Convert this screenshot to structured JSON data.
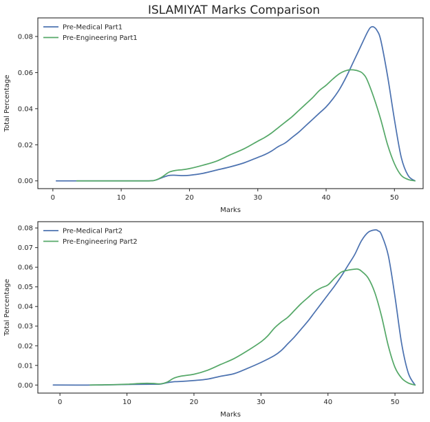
{
  "figure": {
    "title": "ISLAMIYAT Marks Comparison"
  },
  "chart_data": [
    {
      "type": "line",
      "title": "ISLAMIYAT Marks Comparison",
      "xlabel": "Marks",
      "ylabel": "Total Percentage",
      "xlim": [
        -2.2,
        54.2
      ],
      "ylim": [
        -0.0043,
        0.0903
      ],
      "xticks": [
        0,
        10,
        20,
        30,
        40,
        50
      ],
      "yticks": [
        0.0,
        0.02,
        0.04,
        0.06,
        0.08
      ],
      "ytick_labels": [
        "0.00",
        "0.02",
        "0.04",
        "0.06",
        "0.08"
      ],
      "grid": false,
      "legend_position": "top-left",
      "series": [
        {
          "name": "Pre-Medical Part1",
          "color": "#4c72b0",
          "points": [
            [
              0.5,
              0.0
            ],
            [
              5,
              0.0
            ],
            [
              10,
              0.0
            ],
            [
              14,
              0.0
            ],
            [
              15,
              0.0004
            ],
            [
              16,
              0.0018
            ],
            [
              17,
              0.003
            ],
            [
              18,
              0.0031
            ],
            [
              19,
              0.0029
            ],
            [
              20,
              0.0031
            ],
            [
              22,
              0.0042
            ],
            [
              24,
              0.006
            ],
            [
              26,
              0.0078
            ],
            [
              28,
              0.01
            ],
            [
              30,
              0.013
            ],
            [
              31,
              0.0145
            ],
            [
              32,
              0.0165
            ],
            [
              33,
              0.019
            ],
            [
              34,
              0.021
            ],
            [
              35,
              0.024
            ],
            [
              36,
              0.027
            ],
            [
              37,
              0.0305
            ],
            [
              38,
              0.034
            ],
            [
              39,
              0.0375
            ],
            [
              40,
              0.041
            ],
            [
              41,
              0.0455
            ],
            [
              42,
              0.051
            ],
            [
              43,
              0.058
            ],
            [
              44,
              0.066
            ],
            [
              45,
              0.074
            ],
            [
              46,
              0.082
            ],
            [
              46.5,
              0.085
            ],
            [
              47,
              0.0852
            ],
            [
              47.5,
              0.083
            ],
            [
              48,
              0.078
            ],
            [
              49,
              0.058
            ],
            [
              50,
              0.034
            ],
            [
              51,
              0.013
            ],
            [
              52,
              0.003
            ],
            [
              53,
              0.0
            ]
          ]
        },
        {
          "name": "Pre-Engineering Part1",
          "color": "#55a868",
          "points": [
            [
              3.5,
              0.0
            ],
            [
              10,
              0.0
            ],
            [
              14,
              0.0
            ],
            [
              15,
              0.0004
            ],
            [
              16,
              0.0022
            ],
            [
              17,
              0.0048
            ],
            [
              18,
              0.0058
            ],
            [
              19,
              0.0062
            ],
            [
              20,
              0.0068
            ],
            [
              22,
              0.0087
            ],
            [
              24,
              0.011
            ],
            [
              26,
              0.0145
            ],
            [
              28,
              0.0178
            ],
            [
              30,
              0.022
            ],
            [
              31,
              0.024
            ],
            [
              32,
              0.0265
            ],
            [
              33,
              0.0295
            ],
            [
              34,
              0.0325
            ],
            [
              35,
              0.0355
            ],
            [
              36,
              0.039
            ],
            [
              37,
              0.0425
            ],
            [
              38,
              0.046
            ],
            [
              39,
              0.05
            ],
            [
              40,
              0.053
            ],
            [
              41,
              0.0565
            ],
            [
              42,
              0.0595
            ],
            [
              43,
              0.0612
            ],
            [
              44,
              0.0615
            ],
            [
              45,
              0.0605
            ],
            [
              45.5,
              0.059
            ],
            [
              46,
              0.056
            ],
            [
              47,
              0.046
            ],
            [
              48,
              0.034
            ],
            [
              49,
              0.02
            ],
            [
              50,
              0.0095
            ],
            [
              51,
              0.003
            ],
            [
              52,
              0.0008
            ],
            [
              53,
              0.0
            ]
          ]
        }
      ]
    },
    {
      "type": "line",
      "title": "",
      "xlabel": "Marks",
      "ylabel": "Total Percentage",
      "xlim": [
        -3.3,
        54.2
      ],
      "ylim": [
        -0.0041,
        0.0832
      ],
      "xticks": [
        0,
        10,
        20,
        30,
        40,
        50
      ],
      "yticks": [
        0.0,
        0.01,
        0.02,
        0.03,
        0.04,
        0.05,
        0.06,
        0.07,
        0.08
      ],
      "ytick_labels": [
        "0.00",
        "0.01",
        "0.02",
        "0.03",
        "0.04",
        "0.05",
        "0.06",
        "0.07",
        "0.08"
      ],
      "grid": false,
      "legend_position": "top-left",
      "series": [
        {
          "name": "Pre-Medical Part2",
          "color": "#4c72b0",
          "points": [
            [
              -1,
              0.0
            ],
            [
              5,
              0.0
            ],
            [
              10,
              0.0003
            ],
            [
              14,
              0.0004
            ],
            [
              15,
              0.0005
            ],
            [
              16,
              0.0012
            ],
            [
              17,
              0.0017
            ],
            [
              18,
              0.0018
            ],
            [
              20,
              0.0023
            ],
            [
              22,
              0.003
            ],
            [
              24,
              0.0045
            ],
            [
              26,
              0.0058
            ],
            [
              28,
              0.0085
            ],
            [
              30,
              0.0115
            ],
            [
              32,
              0.015
            ],
            [
              33,
              0.0175
            ],
            [
              34,
              0.021
            ],
            [
              35,
              0.0245
            ],
            [
              36,
              0.0285
            ],
            [
              37,
              0.0325
            ],
            [
              38,
              0.037
            ],
            [
              39,
              0.0415
            ],
            [
              40,
              0.046
            ],
            [
              41,
              0.0505
            ],
            [
              42,
              0.0555
            ],
            [
              43,
              0.061
            ],
            [
              44,
              0.0665
            ],
            [
              45,
              0.0735
            ],
            [
              46,
              0.0778
            ],
            [
              47,
              0.079
            ],
            [
              47.5,
              0.0785
            ],
            [
              48,
              0.0765
            ],
            [
              49,
              0.066
            ],
            [
              50,
              0.045
            ],
            [
              51,
              0.021
            ],
            [
              52,
              0.006
            ],
            [
              53,
              0.0
            ]
          ]
        },
        {
          "name": "Pre-Engineering Part2",
          "color": "#55a868",
          "points": [
            [
              4.5,
              0.0
            ],
            [
              8,
              0.0002
            ],
            [
              10,
              0.0004
            ],
            [
              12,
              0.0008
            ],
            [
              13,
              0.0009
            ],
            [
              14,
              0.0008
            ],
            [
              15,
              0.0006
            ],
            [
              16,
              0.0015
            ],
            [
              17,
              0.0035
            ],
            [
              18,
              0.0045
            ],
            [
              20,
              0.0055
            ],
            [
              22,
              0.0075
            ],
            [
              24,
              0.0105
            ],
            [
              26,
              0.0135
            ],
            [
              28,
              0.0175
            ],
            [
              30,
              0.022
            ],
            [
              31,
              0.025
            ],
            [
              32,
              0.029
            ],
            [
              33,
              0.032
            ],
            [
              34,
              0.0345
            ],
            [
              35,
              0.038
            ],
            [
              36,
              0.0415
            ],
            [
              37,
              0.0445
            ],
            [
              38,
              0.0475
            ],
            [
              39,
              0.0495
            ],
            [
              40,
              0.051
            ],
            [
              41,
              0.0545
            ],
            [
              42,
              0.0575
            ],
            [
              43,
              0.0585
            ],
            [
              44,
              0.059
            ],
            [
              44.5,
              0.059
            ],
            [
              45,
              0.058
            ],
            [
              46,
              0.0545
            ],
            [
              47,
              0.047
            ],
            [
              48,
              0.035
            ],
            [
              49,
              0.02
            ],
            [
              50,
              0.009
            ],
            [
              51,
              0.0035
            ],
            [
              52,
              0.001
            ],
            [
              53,
              0.0
            ]
          ]
        }
      ]
    }
  ]
}
